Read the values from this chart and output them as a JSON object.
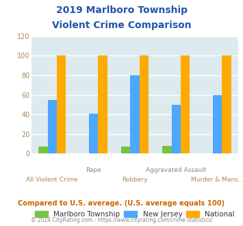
{
  "title_line1": "2019 Marlboro Township",
  "title_line2": "Violent Crime Comparison",
  "categories": [
    "All Violent Crime",
    "Rape",
    "Robbery",
    "Aggravated Assault",
    "Murder & Mans..."
  ],
  "categories_top": [
    "",
    "Rape",
    "",
    "Aggravated Assault",
    ""
  ],
  "categories_bottom": [
    "All Violent Crime",
    "",
    "Robbery",
    "",
    "Murder & Mans..."
  ],
  "marlboro": [
    7,
    0,
    7,
    8,
    0
  ],
  "new_jersey": [
    55,
    41,
    80,
    50,
    60
  ],
  "national": [
    100,
    100,
    100,
    100,
    100
  ],
  "bar_colors": {
    "marlboro": "#76c442",
    "new_jersey": "#4da6ff",
    "national": "#ffaa00"
  },
  "ylim": [
    0,
    120
  ],
  "yticks": [
    0,
    20,
    40,
    60,
    80,
    100,
    120
  ],
  "bg_color": "#ddeaee",
  "title_color": "#2255aa",
  "xlabel_top_color": "#888888",
  "xlabel_bot_color": "#aa8855",
  "ytick_color": "#aa8855",
  "legend_labels": [
    "Marlboro Township",
    "New Jersey",
    "National"
  ],
  "legend_label_color": "#333333",
  "footer_text": "Compared to U.S. average. (U.S. average equals 100)",
  "copyright_text": "© 2024 CityRating.com - https://www.cityrating.com/crime-statistics/",
  "footer_color": "#cc6600",
  "copyright_color": "#888888",
  "grid_color": "#ffffff"
}
